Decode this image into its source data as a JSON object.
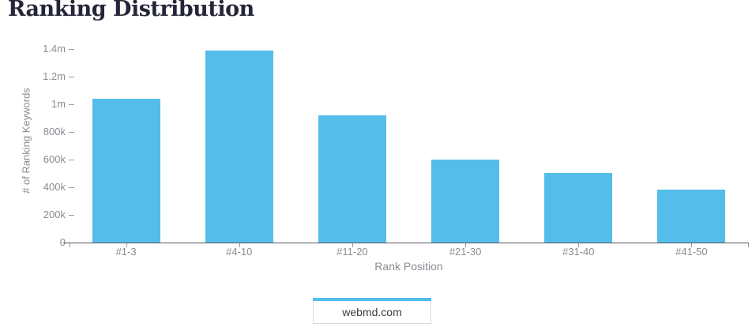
{
  "page": {
    "title": "Ranking Distribution"
  },
  "chart_data": {
    "type": "bar",
    "title": "Ranking Distribution",
    "categories": [
      "#1-3",
      "#4-10",
      "#11-20",
      "#21-30",
      "#31-40",
      "#41-50"
    ],
    "values": [
      1040000,
      1390000,
      920000,
      600000,
      505000,
      380000
    ],
    "xlabel": "Rank Position",
    "ylabel": "# of Ranking Keywords",
    "ylim": [
      0,
      1400000
    ],
    "ytick_values": [
      0,
      200000,
      400000,
      600000,
      800000,
      1000000,
      1200000,
      1400000
    ],
    "ytick_labels": [
      "0",
      "200k",
      "400k",
      "600k",
      "800k",
      "1m",
      "1.2m",
      "1.4m"
    ],
    "grid": false,
    "legend_position": "bottom",
    "series_name": "webmd.com",
    "legend": [
      {
        "label": "webmd.com",
        "color": "#54bde9"
      }
    ]
  },
  "colors": {
    "bar": "#54bde9",
    "title_text": "#26263a",
    "axis_text": "#8b8b93",
    "axis_line": "#55575f",
    "tick_mark": "#9a9aa1",
    "legend_text": "#3b3b44",
    "legend_border": "#d8d8d8"
  }
}
